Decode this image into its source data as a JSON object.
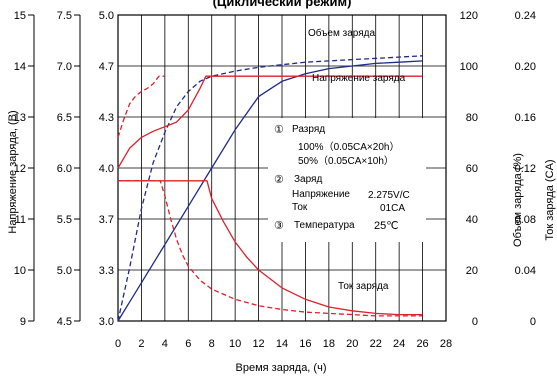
{
  "chart_data": {
    "type": "line",
    "title": "(Циклический режим)",
    "xlabel": "Время заряда, (ч)",
    "x_ticks": [
      "0",
      "2",
      "4",
      "6",
      "8",
      "10",
      "12",
      "14",
      "16",
      "18",
      "20",
      "22",
      "24",
      "26",
      "28"
    ],
    "xlim": [
      0,
      28
    ],
    "y_axes": {
      "voltage_battery": {
        "label": "Напряжение заряда, (В)",
        "ticks": [
          "9",
          "10",
          "11",
          "12",
          "13",
          "14",
          "15"
        ],
        "range": [
          9,
          15
        ]
      },
      "voltage_cell_small": {
        "ticks": [
          "4.5",
          "5.0",
          "5.5",
          "6.0",
          "6.5",
          "7.0",
          "7.5"
        ],
        "range": [
          4.5,
          7.5
        ]
      },
      "voltage_cell": {
        "ticks": [
          "3.0",
          "3.3",
          "3.7",
          "4.0",
          "4.3",
          "4.7",
          "5.0"
        ],
        "range": [
          3.0,
          5.0
        ]
      },
      "charge_volume": {
        "label": "Объем заряда (%)",
        "ticks": [
          "0",
          "20",
          "40",
          "60",
          "80",
          "100",
          "120"
        ],
        "range": [
          0,
          120
        ]
      },
      "charge_current": {
        "label": "Ток заряда (CA)",
        "ticks": [
          "0",
          "0.04",
          "0.08",
          "0.12",
          "0.16",
          "0.20",
          "0.24"
        ],
        "range": [
          0,
          0.24
        ]
      }
    },
    "grid": true,
    "curve_labels": {
      "volume": "Объем заряда",
      "voltage": "Напряжение заряда",
      "current": "Ток заряда"
    },
    "series": [
      {
        "quantity": "charge_volume",
        "axis": "charge_volume",
        "color": "#1f2a8c",
        "style": "solid",
        "condition": "100% (0.05CA×20h)",
        "x": [
          0,
          2,
          4,
          6,
          8,
          10,
          12,
          14,
          16,
          18,
          20,
          22,
          24,
          26
        ],
        "y": [
          0,
          15,
          30,
          45,
          60,
          75,
          88,
          94,
          97,
          99,
          100,
          101,
          101.5,
          102
        ]
      },
      {
        "quantity": "charge_volume",
        "axis": "charge_volume",
        "color": "#1f2a8c",
        "style": "dashed",
        "condition": "50% (0.05CA×10h)",
        "x": [
          0,
          1,
          2,
          3,
          4,
          5,
          6,
          7,
          8,
          10,
          12,
          14,
          16,
          18,
          20,
          22,
          24,
          26
        ],
        "y": [
          0,
          21,
          44,
          62,
          74,
          84,
          90,
          94,
          96,
          98,
          99.5,
          100.5,
          101.5,
          102,
          102.5,
          103,
          103.5,
          104
        ]
      },
      {
        "quantity": "charge_voltage",
        "axis": "voltage_cell",
        "color": "#e0202a",
        "style": "solid",
        "condition": "100% (0.05CA×20h)",
        "x": [
          0,
          1,
          2,
          3,
          4,
          5,
          6,
          7,
          7.5,
          8,
          10,
          14,
          18,
          22,
          26
        ],
        "y": [
          4.0,
          4.13,
          4.2,
          4.24,
          4.27,
          4.3,
          4.38,
          4.52,
          4.6,
          4.6,
          4.6,
          4.6,
          4.6,
          4.6,
          4.6
        ]
      },
      {
        "quantity": "charge_voltage",
        "axis": "voltage_cell",
        "color": "#e0202a",
        "style": "dashed",
        "condition": "50% (0.05CA×10h)",
        "x": [
          0,
          0.5,
          1,
          1.5,
          2,
          2.5,
          3,
          3.5,
          3.8,
          4
        ],
        "y": [
          4.2,
          4.32,
          4.42,
          4.47,
          4.5,
          4.52,
          4.55,
          4.6,
          4.6,
          4.6
        ]
      },
      {
        "quantity": "charge_current",
        "axis": "charge_current",
        "color": "#e0202a",
        "style": "solid",
        "condition": "100% (0.05CA×20h)",
        "x": [
          0,
          2,
          4,
          6,
          7.6,
          8,
          9,
          10,
          11,
          12,
          14,
          16,
          18,
          20,
          22,
          24,
          26
        ],
        "y": [
          0.11,
          0.11,
          0.11,
          0.11,
          0.11,
          0.096,
          0.078,
          0.062,
          0.05,
          0.04,
          0.026,
          0.017,
          0.011,
          0.008,
          0.006,
          0.005,
          0.005
        ]
      },
      {
        "quantity": "charge_current",
        "axis": "charge_current",
        "color": "#e0202a",
        "style": "dashed",
        "condition": "50% (0.05CA×10h)",
        "x": [
          0,
          2,
          3.6,
          4,
          4.5,
          5,
          5.5,
          6,
          7,
          8,
          10,
          12,
          14,
          16,
          18,
          20,
          22,
          24,
          26
        ],
        "y": [
          0.11,
          0.11,
          0.11,
          0.098,
          0.08,
          0.064,
          0.052,
          0.043,
          0.032,
          0.025,
          0.017,
          0.012,
          0.009,
          0.007,
          0.006,
          0.005,
          0.004,
          0.004,
          0.004
        ]
      }
    ],
    "conditions": {
      "discharge": {
        "num": "①",
        "label": "Разряд",
        "rows": [
          "100%（0.05CA×20h）",
          "50%（0.05CA×10h）"
        ]
      },
      "charge": {
        "num": "②",
        "label": "Заряд",
        "voltage_label": "Напряжение",
        "voltage_value": "2.275V/C",
        "current_label": "Ток",
        "current_value": "01CA"
      },
      "temperature": {
        "num": "③",
        "label": "Температура",
        "value": "25℃"
      }
    }
  }
}
